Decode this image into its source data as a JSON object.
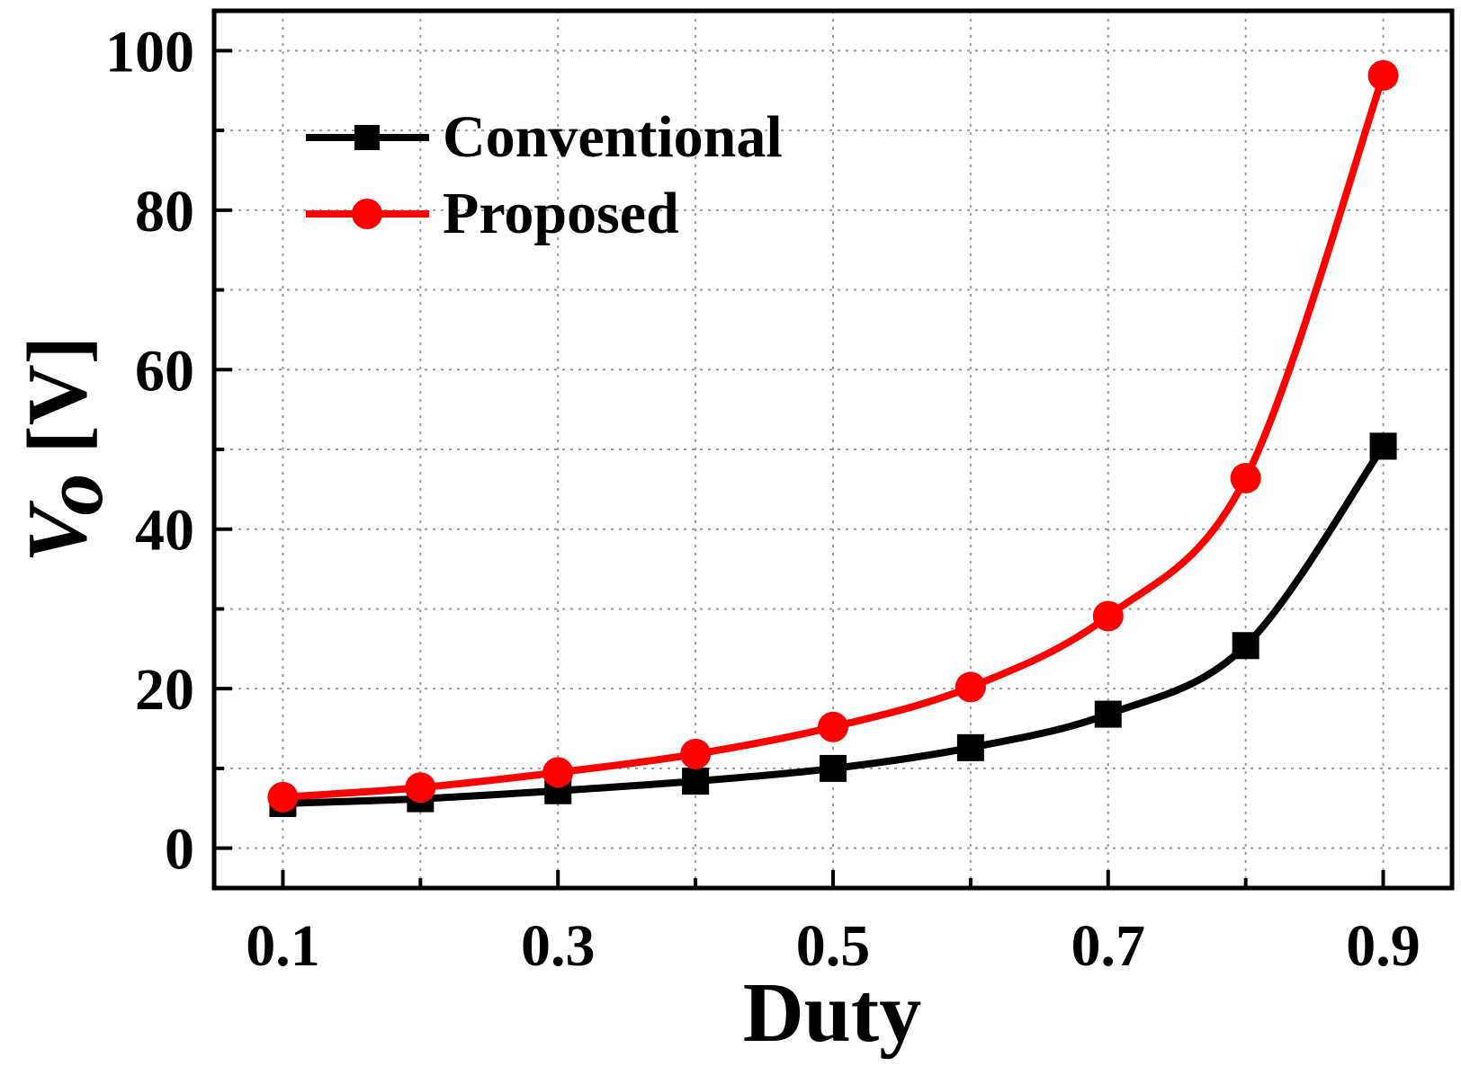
{
  "chart_data": {
    "type": "line",
    "title": "",
    "xlabel": "Duty",
    "ylabel_main": "V",
    "ylabel_sub": "o",
    "ylabel_unit": "[V]",
    "x": [
      0.1,
      0.2,
      0.3,
      0.4,
      0.5,
      0.6,
      0.7,
      0.8,
      0.9
    ],
    "xlim": [
      0.05,
      0.95
    ],
    "ylim": [
      -5,
      105
    ],
    "x_major_ticks": [
      0.1,
      0.3,
      0.5,
      0.7,
      0.9
    ],
    "x_tick_labels": [
      "0.1",
      "0.3",
      "0.5",
      "0.7",
      "0.9"
    ],
    "x_minor_ticks": [
      0.2,
      0.4,
      0.6,
      0.8
    ],
    "y_major_ticks": [
      0,
      20,
      40,
      60,
      80,
      100
    ],
    "y_tick_labels": [
      "0",
      "20",
      "40",
      "60",
      "80",
      "100"
    ],
    "y_minor_ticks": [
      10,
      30,
      50,
      70,
      90
    ],
    "grid": true,
    "legend_position": "top-left",
    "series": [
      {
        "name": "Conventional",
        "color": "#000000",
        "marker": "square",
        "values": [
          5.6,
          6.2,
          7.2,
          8.4,
          10.0,
          12.6,
          16.8,
          25.4,
          50.4
        ]
      },
      {
        "name": "Proposed",
        "color": "#ff0000",
        "marker": "circle",
        "values": [
          6.4,
          7.6,
          9.5,
          11.8,
          15.2,
          20.2,
          29.1,
          46.4,
          96.9
        ]
      }
    ]
  }
}
